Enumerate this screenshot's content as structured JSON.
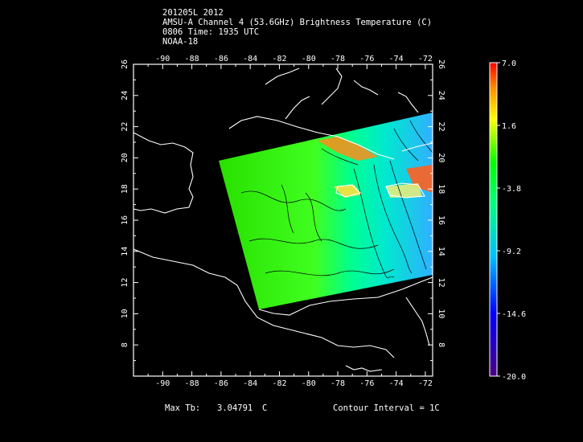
{
  "title": {
    "line1": "201205L 2012",
    "line2": "AMSU-A Channel 4 (53.6GHz) Brightness Temperature (C)",
    "line3": "0806 Time: 1935 UTC",
    "line4": "NOAA-18"
  },
  "axes": {
    "lon_ticks": [
      "-90",
      "-88",
      "-86",
      "-84",
      "-82",
      "-80",
      "-78",
      "-76",
      "-74",
      "-72"
    ],
    "lat_ticks": [
      "8",
      "10",
      "12",
      "14",
      "16",
      "18",
      "20",
      "22",
      "24",
      "26"
    ],
    "lon_range": [
      -92,
      -71.5
    ],
    "lat_range": [
      6,
      26
    ]
  },
  "colorbar": {
    "labels": [
      "7.0",
      "1.6",
      "-3.8",
      "-9.2",
      "-14.6",
      "-20.0"
    ],
    "range": [
      -20.0,
      7.0
    ],
    "colors": [
      "#4b0082",
      "#0000ff",
      "#00bfff",
      "#00ff80",
      "#00ff00",
      "#ffff00",
      "#ff8c00",
      "#ff0000"
    ]
  },
  "footer": {
    "max_tb_label": "Max Tb:",
    "max_tb_value": "3.04791",
    "max_tb_unit": "C",
    "contour_interval": "Contour Interval = 1C"
  }
}
